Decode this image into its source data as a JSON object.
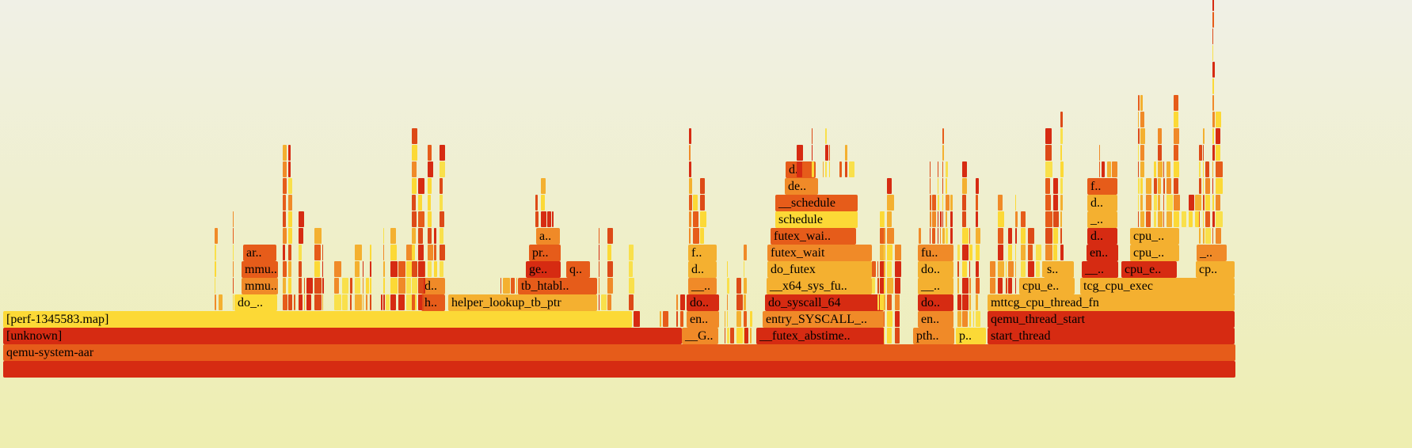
{
  "title": "",
  "colors": {
    "palette": [
      "#d62b12",
      "#e65c1a",
      "#f08a28",
      "#f4b030",
      "#fcd936",
      "#f9e04b",
      "#dd4a17"
    ]
  },
  "frames": [
    {
      "id": "root",
      "label": "",
      "color": "#d62b12"
    },
    {
      "id": "qemu-system-aar",
      "label": "qemu-system-aar",
      "color": "#e65c1a"
    },
    {
      "id": "unknown",
      "label": "[unknown]",
      "color": "#d62b12"
    },
    {
      "id": "perf-map",
      "label": "[perf-1345583.map]",
      "color": "#fcd936"
    },
    {
      "id": "do-underscore",
      "label": "do_..",
      "color": "#fcd936"
    },
    {
      "id": "mmu-1",
      "label": "mmu..",
      "color": "#f08a28"
    },
    {
      "id": "mmu-2",
      "label": "mmu..",
      "color": "#e65c1a"
    },
    {
      "id": "ar",
      "label": "ar..",
      "color": "#e65c1a"
    },
    {
      "id": "h",
      "label": "h..",
      "color": "#e65c1a"
    },
    {
      "id": "d-1",
      "label": "d..",
      "color": "#f08a28"
    },
    {
      "id": "helper-lookup",
      "label": "helper_lookup_tb_ptr",
      "color": "#f4b030"
    },
    {
      "id": "tb-htabl",
      "label": "tb_htabl..",
      "color": "#e65c1a"
    },
    {
      "id": "ge",
      "label": "ge..",
      "color": "#d62b12"
    },
    {
      "id": "q",
      "label": "q..",
      "color": "#e65c1a"
    },
    {
      "id": "pr",
      "label": "pr..",
      "color": "#e65c1a"
    },
    {
      "id": "a",
      "label": "a..",
      "color": "#f08a28"
    },
    {
      "id": "G",
      "label": "__G..",
      "color": "#f08a28"
    },
    {
      "id": "en-1",
      "label": "en..",
      "color": "#f08a28"
    },
    {
      "id": "do-1",
      "label": "do..",
      "color": "#d62b12"
    },
    {
      "id": "dunder-1",
      "label": "__..",
      "color": "#f08a28"
    },
    {
      "id": "d-2",
      "label": "d..",
      "color": "#f4b030"
    },
    {
      "id": "f-1",
      "label": "f..",
      "color": "#f4b030"
    },
    {
      "id": "futex-abstime",
      "label": "__futex_abstime..",
      "color": "#d62b12"
    },
    {
      "id": "entry-syscall",
      "label": "entry_SYSCALL_..",
      "color": "#f08a28"
    },
    {
      "id": "do-syscall",
      "label": "do_syscall_64",
      "color": "#d62b12"
    },
    {
      "id": "x64-sys-fu",
      "label": "__x64_sys_fu..",
      "color": "#f4b030"
    },
    {
      "id": "do-futex",
      "label": "do_futex",
      "color": "#f4b030"
    },
    {
      "id": "futex-wait",
      "label": "futex_wait",
      "color": "#f08a28"
    },
    {
      "id": "futex-wai",
      "label": "futex_wai..",
      "color": "#e65c1a"
    },
    {
      "id": "schedule",
      "label": "schedule",
      "color": "#fcd936"
    },
    {
      "id": "__schedule",
      "label": "__schedule",
      "color": "#e65c1a"
    },
    {
      "id": "de",
      "label": "de..",
      "color": "#f08a28"
    },
    {
      "id": "d-3",
      "label": "d..",
      "color": "#e65c1a"
    },
    {
      "id": "pth",
      "label": "pth..",
      "color": "#f08a28"
    },
    {
      "id": "en-2",
      "label": "en..",
      "color": "#f08a28"
    },
    {
      "id": "do-2",
      "label": "do..",
      "color": "#d62b12"
    },
    {
      "id": "dunder-2",
      "label": "__..",
      "color": "#f4b030"
    },
    {
      "id": "do-3",
      "label": "do..",
      "color": "#f4b030"
    },
    {
      "id": "fu",
      "label": "fu..",
      "color": "#f08a28"
    },
    {
      "id": "p",
      "label": "p..",
      "color": "#fcd936"
    },
    {
      "id": "start-thread",
      "label": "start_thread",
      "color": "#d62b12"
    },
    {
      "id": "qemu-thread-start",
      "label": "qemu_thread_start",
      "color": "#d62b12"
    },
    {
      "id": "mttcg-cpu-thread-fn",
      "label": "mttcg_cpu_thread_fn",
      "color": "#f4b030"
    },
    {
      "id": "cpu-e-1",
      "label": "cpu_e..",
      "color": "#f4b030"
    },
    {
      "id": "tcg-cpu-exec",
      "label": "tcg_cpu_exec",
      "color": "#f4b030"
    },
    {
      "id": "s",
      "label": "s..",
      "color": "#f4b030"
    },
    {
      "id": "dunder-3",
      "label": "__..",
      "color": "#d62b12"
    },
    {
      "id": "cpu-e-2",
      "label": "cpu_e..",
      "color": "#d62b12"
    },
    {
      "id": "cp",
      "label": "cp..",
      "color": "#f4b030"
    },
    {
      "id": "en-3",
      "label": "en..",
      "color": "#d62b12"
    },
    {
      "id": "cpu-1",
      "label": "cpu_..",
      "color": "#f4b030"
    },
    {
      "id": "underscore-1",
      "label": "_..",
      "color": "#f08a28"
    },
    {
      "id": "d-4",
      "label": "d..",
      "color": "#d62b12"
    },
    {
      "id": "cpu-2",
      "label": "cpu_..",
      "color": "#f4b030"
    },
    {
      "id": "dunder-4",
      "label": "_..",
      "color": "#f4b030"
    },
    {
      "id": "d-5",
      "label": "d..",
      "color": "#f4b030"
    },
    {
      "id": "f-2",
      "label": "f..",
      "color": "#e65c1a"
    }
  ]
}
